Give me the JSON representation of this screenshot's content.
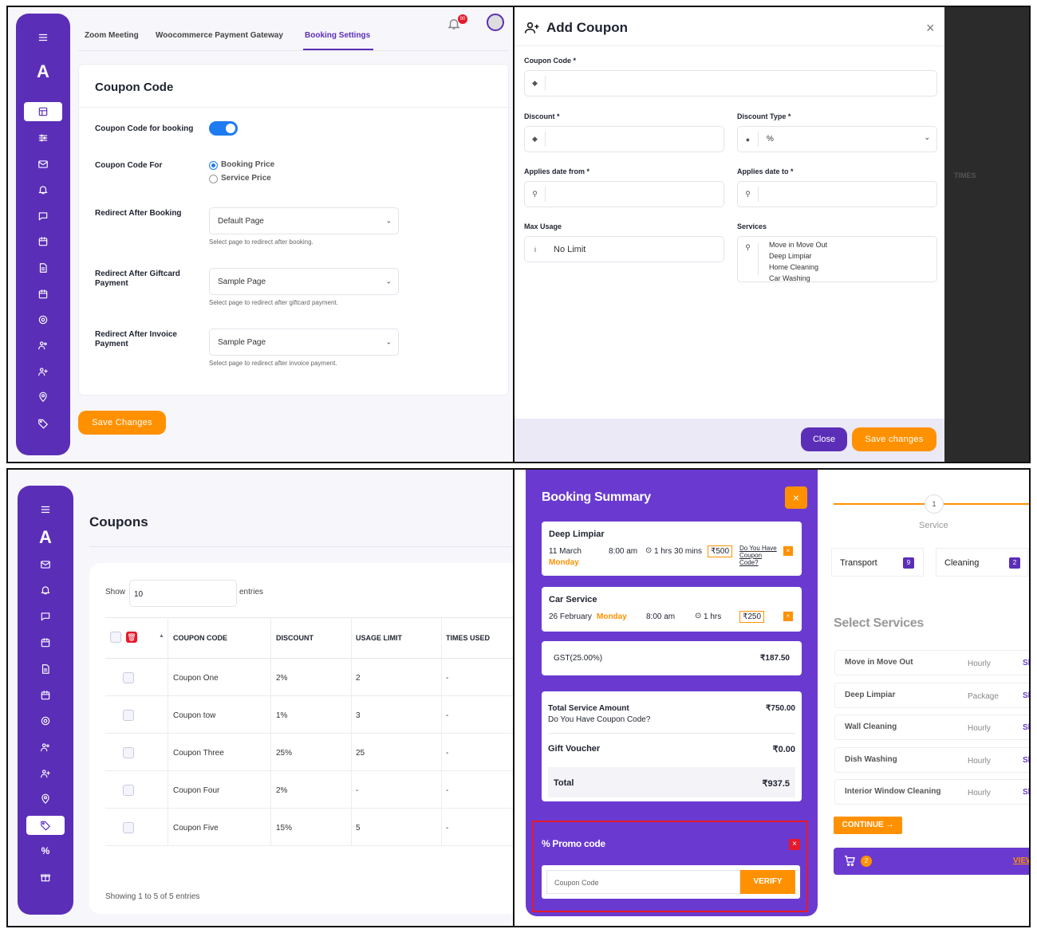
{
  "colors": {
    "primary": "#5b2eb8",
    "accent": "#ff9100",
    "toggle": "#1e7bf2",
    "danger": "#e6192b"
  },
  "booking_settings": {
    "tabs": [
      "Zoom Meeting",
      "Woocommerce Payment Gateway",
      "Booking Settings"
    ],
    "active_tab": "Booking Settings",
    "notification_count": "90",
    "logo": "A",
    "card_title": "Coupon Code",
    "coupon_for_booking_label": "Coupon Code for booking",
    "coupon_for_booking_enabled": true,
    "coupon_code_for_label": "Coupon Code For",
    "radio_options": [
      "Booking Price",
      "Service Price"
    ],
    "radio_selected": "Booking Price",
    "redirect_booking_label": "Redirect After Booking",
    "redirect_booking_value": "Default Page",
    "redirect_booking_hint": "Select page to redirect after booking.",
    "redirect_giftcard_label_1": "Redirect After Giftcard",
    "redirect_giftcard_label_2": "Payment",
    "redirect_giftcard_value": "Sample Page",
    "redirect_giftcard_hint": "Select page to redirect after giftcard payment.",
    "redirect_invoice_label_1": "Redirect After Invoice",
    "redirect_invoice_label_2": "Payment",
    "redirect_invoice_value": "Sample Page",
    "redirect_invoice_hint": "Select page to redirect after invoice payment.",
    "save_button": "Save Changes"
  },
  "add_coupon": {
    "title": "Add Coupon",
    "coupon_code_label": "Coupon Code *",
    "discount_label": "Discount *",
    "discount_type_label": "Discount Type *",
    "discount_type_value": "%",
    "applies_from_label": "Applies date from *",
    "applies_to_label": "Applies date to *",
    "max_usage_label": "Max Usage",
    "max_usage_value": "No Limit",
    "services_label": "Services",
    "services": [
      "Move in Move Out",
      "Deep Limpiar",
      "Home Cleaning",
      "Car Washing"
    ],
    "close_button": "Close",
    "save_button": "Save changes",
    "backdrop_text": "TIMES"
  },
  "coupons": {
    "logo": "A",
    "title": "Coupons",
    "show_label": "Show",
    "show_value": "10",
    "entries_label": "entries",
    "columns": [
      "COUPON CODE",
      "DISCOUNT",
      "USAGE LIMIT",
      "TIMES USED"
    ],
    "rows": [
      {
        "code": "Coupon One",
        "discount": "2%",
        "limit": "2",
        "used": "-"
      },
      {
        "code": "Coupon tow",
        "discount": "1%",
        "limit": "3",
        "used": "-"
      },
      {
        "code": "Coupon Three",
        "discount": "25%",
        "limit": "25",
        "used": "-"
      },
      {
        "code": "Coupon Four",
        "discount": "2%",
        "limit": "-",
        "used": "-"
      },
      {
        "code": "Coupon Five",
        "discount": "15%",
        "limit": "5",
        "used": "-"
      }
    ],
    "footer": "Showing 1 to 5 of 5 entries"
  },
  "booking_summary": {
    "title": "Booking Summary",
    "item1": {
      "name": "Deep Limpiar",
      "date": "11 March",
      "day": "Monday",
      "time": "8:00 am",
      "duration": "1 hrs 30 mins",
      "price": "₹500",
      "coupon_link_1": "Do You Have",
      "coupon_link_2": "Coupon",
      "coupon_link_3": "Code?"
    },
    "item2": {
      "name": "Car Service",
      "date": "26 February",
      "day": "Monday",
      "time": "8:00 am",
      "duration": "1 hrs",
      "price": "₹250"
    },
    "gst_label": "GST(25.00%)",
    "gst_value": "₹187.50",
    "total_service_label": "Total Service Amount",
    "total_service_value": "₹750.00",
    "coupon_question": "Do You Have Coupon Code?",
    "gift_voucher_label": "Gift Voucher",
    "gift_voucher_value": "₹0.00",
    "total_label": "Total",
    "total_value": "₹937.5",
    "promo_title": "Promo code",
    "promo_placeholder": "Coupon Code",
    "verify_button": "VERIFY",
    "close_icon": "×"
  },
  "services_panel": {
    "step_number": "1",
    "step_label": "Service",
    "categories": [
      {
        "name": "Transport",
        "count": "9"
      },
      {
        "name": "Cleaning",
        "count": "2"
      }
    ],
    "heading": "Select Services",
    "rows": [
      {
        "name": "Move in Move Out",
        "type": "Hourly",
        "sel": "Sh"
      },
      {
        "name": "Deep Limpiar",
        "type": "Package",
        "sel": "Sh"
      },
      {
        "name": "Wall Cleaning",
        "type": "Hourly",
        "sel": "Sh"
      },
      {
        "name": "Dish Washing",
        "type": "Hourly",
        "sel": "Sh"
      },
      {
        "name": "Interior Window Cleaning",
        "type": "Hourly",
        "sel": "Sh"
      }
    ],
    "continue_button": "CONTINUE →",
    "cart_count": "2",
    "view_link": "VIEW"
  }
}
